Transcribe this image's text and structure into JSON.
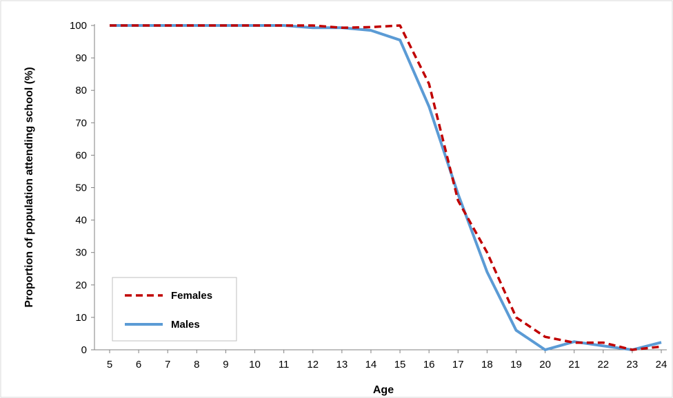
{
  "chart_data": {
    "type": "line",
    "title": "",
    "xlabel": "Age",
    "ylabel": "Proportion of population attending school (%)",
    "x": [
      5,
      6,
      7,
      8,
      9,
      10,
      11,
      12,
      13,
      14,
      15,
      16,
      17,
      18,
      19,
      20,
      21,
      22,
      23,
      24
    ],
    "ylim": [
      0,
      100
    ],
    "yticks": [
      0,
      10,
      20,
      30,
      40,
      50,
      60,
      70,
      80,
      90,
      100
    ],
    "grid": false,
    "legend_position": "bottom-left",
    "series": [
      {
        "name": "Females",
        "color": "#c00000",
        "style": "dashed",
        "values": [
          100,
          100,
          100,
          100,
          100,
          100,
          100,
          100,
          99.3,
          99.5,
          100,
          82,
          46,
          30,
          10,
          4,
          2.2,
          2.2,
          0,
          1
        ]
      },
      {
        "name": "Males",
        "color": "#5b9bd5",
        "style": "solid",
        "values": [
          100,
          100,
          100,
          100,
          100,
          100,
          100,
          99.3,
          99.3,
          98.5,
          95.5,
          75,
          48,
          24,
          6,
          0,
          2.5,
          1.2,
          0,
          2.3
        ]
      }
    ]
  }
}
